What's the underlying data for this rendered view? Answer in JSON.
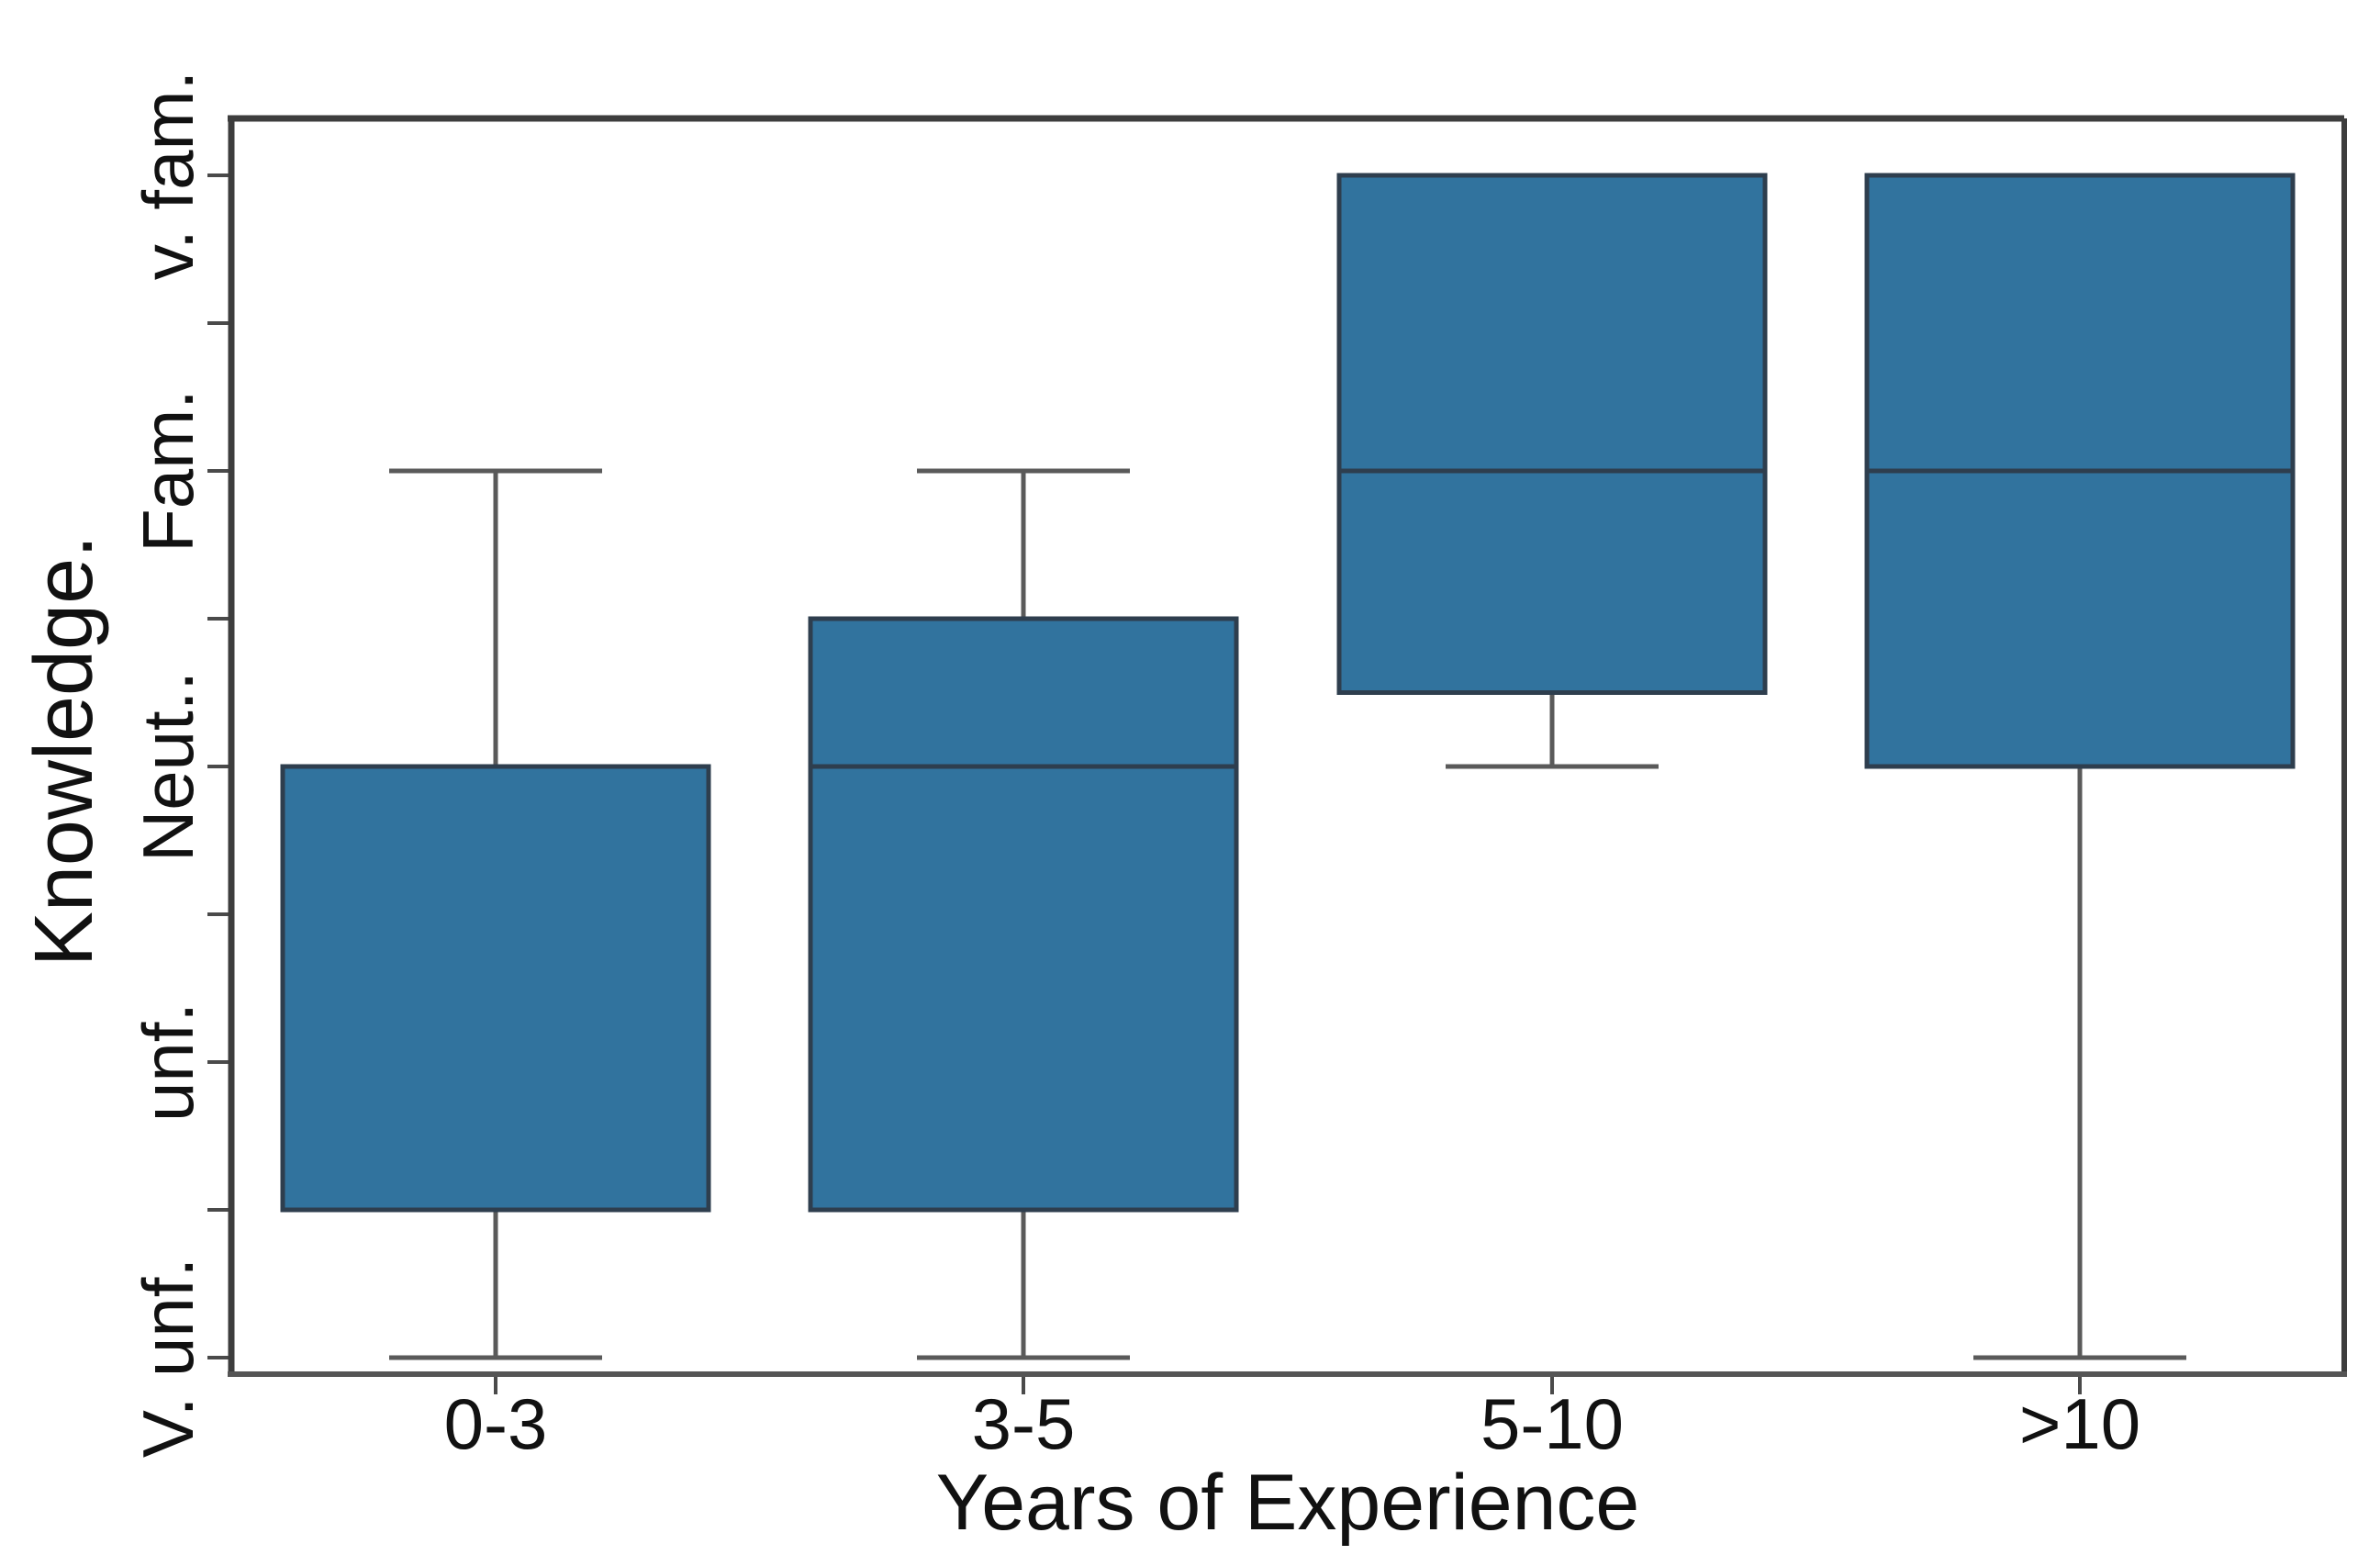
{
  "chart_data": {
    "type": "box",
    "title": "",
    "xlabel": "Years of Experience",
    "ylabel": "Knowledge.",
    "categories": [
      "0-3",
      "3-5",
      "5-10",
      ">10"
    ],
    "y_tick_labels": [
      "V. unf.",
      "unf.",
      "Neut..",
      "Fam.",
      "v. fam."
    ],
    "y_scale_note": "5-point Likert scale: 1 = V. unf., 2 = unf., 3 = Neut.., 4 = Fam., 5 = v. fam.; unlabeled minor ticks every 0.5",
    "ylim": [
      0.94,
      5.19
    ],
    "grid": false,
    "legend": "none",
    "series": [
      {
        "category": "0-3",
        "min": 1,
        "q1": 1.5,
        "median": 3,
        "q3": 3,
        "max": 4
      },
      {
        "category": "3-5",
        "min": 1,
        "q1": 1.5,
        "median": 3,
        "q3": 3.5,
        "max": 4
      },
      {
        "category": "5-10",
        "min": 3,
        "q1": 3.25,
        "median": 4,
        "q3": 5,
        "max": 5
      },
      {
        "category": ">10",
        "min": 1,
        "q1": 3,
        "median": 4,
        "q3": 5,
        "max": 5
      }
    ],
    "colors": {
      "box_fill": "#31739E",
      "box_edge": "#2E3E4E",
      "median": "#2E3E4E",
      "whisker": "#5A5A5A",
      "spine_dark": "#3D3D3D",
      "spine_gray": "#555555",
      "tick": "#4A4A4A",
      "text": "#111111",
      "background": "#FFFFFF"
    }
  }
}
